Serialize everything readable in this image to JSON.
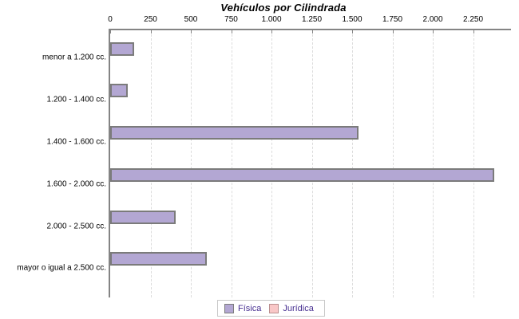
{
  "chart_data": {
    "type": "bar",
    "orientation": "horizontal",
    "title": "Vehículos por Cilindrada",
    "categories": [
      "menor a 1.200 cc.",
      "1.200 - 1.400 cc.",
      "1.400 - 1.600 cc.",
      "1.600 - 2.000 cc.",
      "2.000 - 2.500 cc.",
      "mayor o igual a 2.500 cc."
    ],
    "series": [
      {
        "name": "Física",
        "color": "#b3a7d3",
        "border_color": "#7b7b7b",
        "values": [
          150,
          110,
          1540,
          2380,
          405,
          600
        ]
      },
      {
        "name": "Jurídica",
        "color": "#f9c7c7",
        "border_color": "#bb8f8f",
        "values": [
          0,
          0,
          0,
          0,
          0,
          0
        ]
      }
    ],
    "x_ticks": [
      0,
      250,
      500,
      750,
      1000,
      1250,
      1500,
      1750,
      2000,
      2250
    ],
    "x_tick_labels": [
      "0",
      "250",
      "500",
      "750",
      "1.000",
      "1.250",
      "1.500",
      "1.750",
      "2.000",
      "2.250"
    ],
    "xlim": [
      0,
      2485
    ],
    "grid": "vertical dashed",
    "legend_position": "bottom",
    "colors": {
      "axis": "#848484",
      "gridline": "#dcdcdc",
      "legend_text": "#472f91",
      "legend_border": "#c8c8c8",
      "background": "#ffffff"
    }
  }
}
